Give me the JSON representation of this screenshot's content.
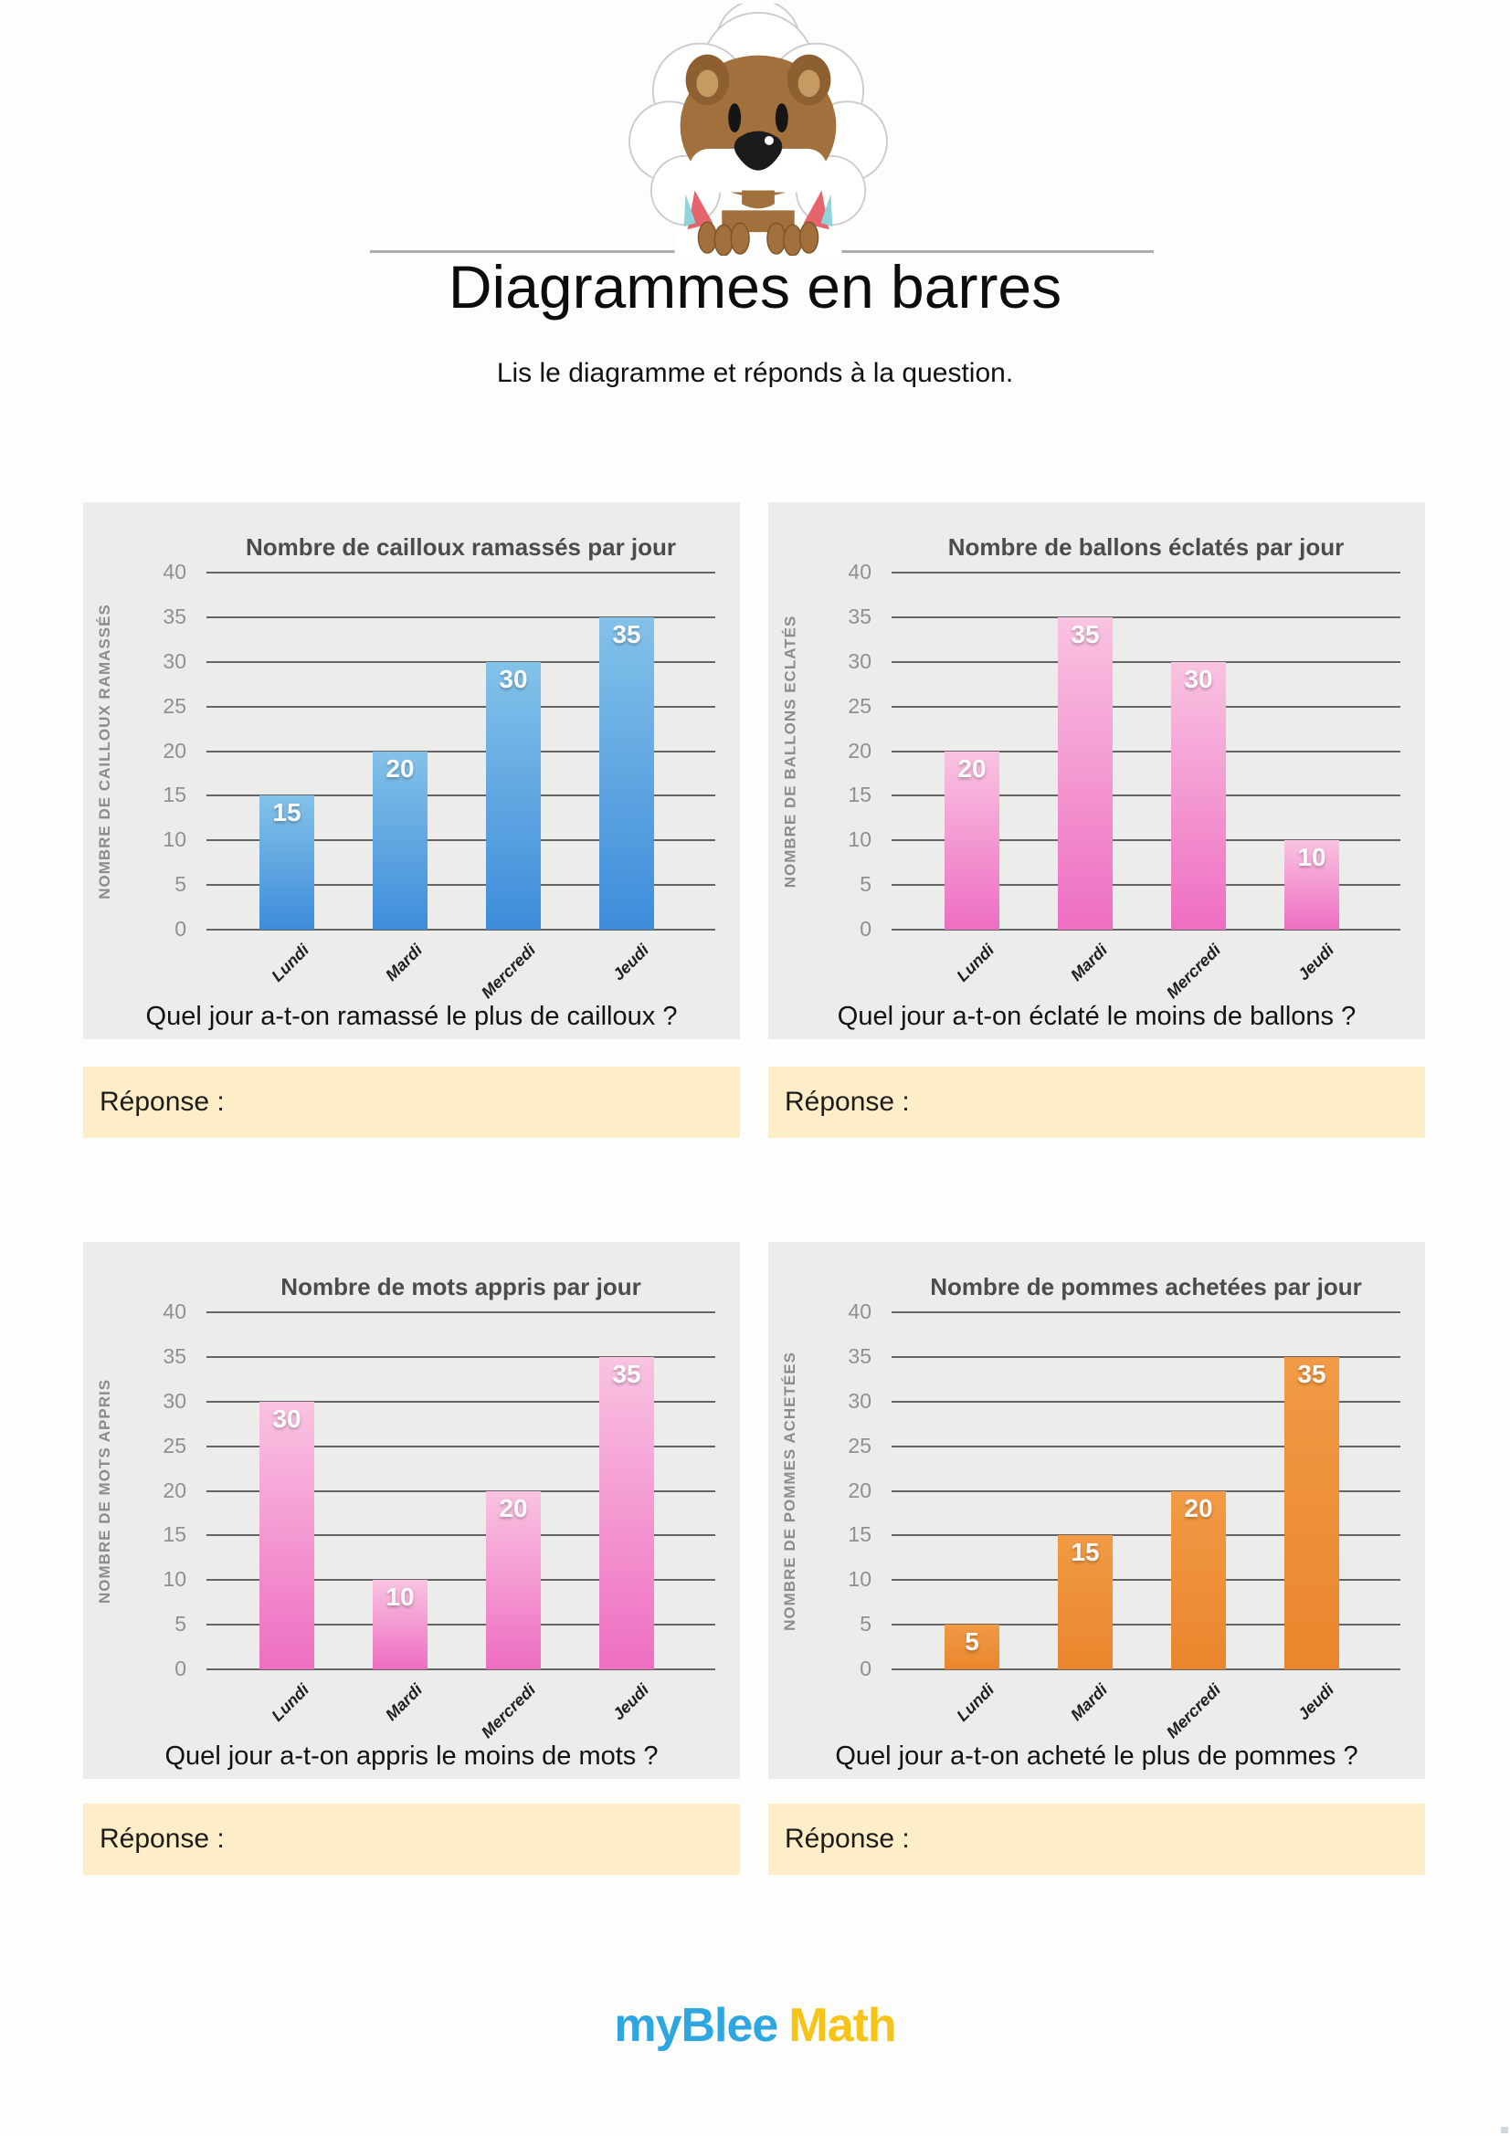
{
  "page": {
    "title": "Diagrammes en barres",
    "subtitle": "Lis le diagramme et réponds à la question.",
    "answer_label": "Réponse :",
    "logo": {
      "part1": "my",
      "part2": "Blee",
      "part3": "Math",
      "blue": "#2ea7e0",
      "yellow": "#f6c419"
    }
  },
  "chart_data": [
    {
      "type": "bar",
      "title": "Nombre de cailloux ramassés par jour",
      "ylabel": "NOMBRE DE CAILLOUX RAMASSÉS",
      "xlabel": "",
      "categories": [
        "Lundi",
        "Mardi",
        "Mercredi",
        "Jeudi"
      ],
      "values": [
        15,
        20,
        30,
        35
      ],
      "ylim": [
        0,
        40
      ],
      "yticks": [
        0,
        5,
        10,
        15,
        20,
        25,
        30,
        35,
        40
      ],
      "grid": true,
      "legend": false,
      "question": "Quel jour a-t-on ramassé le plus de cailloux ?",
      "colors": {
        "top": "#83c2e9",
        "bottom": "#3e8cda"
      }
    },
    {
      "type": "bar",
      "title": "Nombre de ballons éclatés par jour",
      "ylabel": "NOMBRE DE BALLONS ECLATÉS",
      "xlabel": "",
      "categories": [
        "Lundi",
        "Mardi",
        "Mercredi",
        "Jeudi"
      ],
      "values": [
        20,
        35,
        30,
        10
      ],
      "ylim": [
        0,
        40
      ],
      "yticks": [
        0,
        5,
        10,
        15,
        20,
        25,
        30,
        35,
        40
      ],
      "grid": true,
      "legend": false,
      "question": "Quel jour a-t-on éclaté le moins de ballons ?",
      "colors": {
        "top": "#f9c3e1",
        "bottom": "#ee6ec2"
      }
    },
    {
      "type": "bar",
      "title": "Nombre de mots appris par jour",
      "ylabel": "NOMBRE DE MOTS APPRIS",
      "xlabel": "",
      "categories": [
        "Lundi",
        "Mardi",
        "Mercredi",
        "Jeudi"
      ],
      "values": [
        30,
        10,
        20,
        35
      ],
      "ylim": [
        0,
        40
      ],
      "yticks": [
        0,
        5,
        10,
        15,
        20,
        25,
        30,
        35,
        40
      ],
      "grid": true,
      "legend": false,
      "question": "Quel jour a-t-on appris le moins de mots ?",
      "colors": {
        "top": "#f9c3e1",
        "bottom": "#ee6ec2"
      }
    },
    {
      "type": "bar",
      "title": "Nombre de pommes achetées par jour",
      "ylabel": "NOMBRE DE POMMES ACHETÉES",
      "xlabel": "",
      "categories": [
        "Lundi",
        "Mardi",
        "Mercredi",
        "Jeudi"
      ],
      "values": [
        5,
        15,
        20,
        35
      ],
      "ylim": [
        0,
        40
      ],
      "yticks": [
        0,
        5,
        10,
        15,
        20,
        25,
        30,
        35,
        40
      ],
      "grid": true,
      "legend": false,
      "question": "Quel jour a-t-on acheté le plus de pommes ?",
      "colors": {
        "top": "#f29a45",
        "bottom": "#e9862d"
      }
    }
  ]
}
